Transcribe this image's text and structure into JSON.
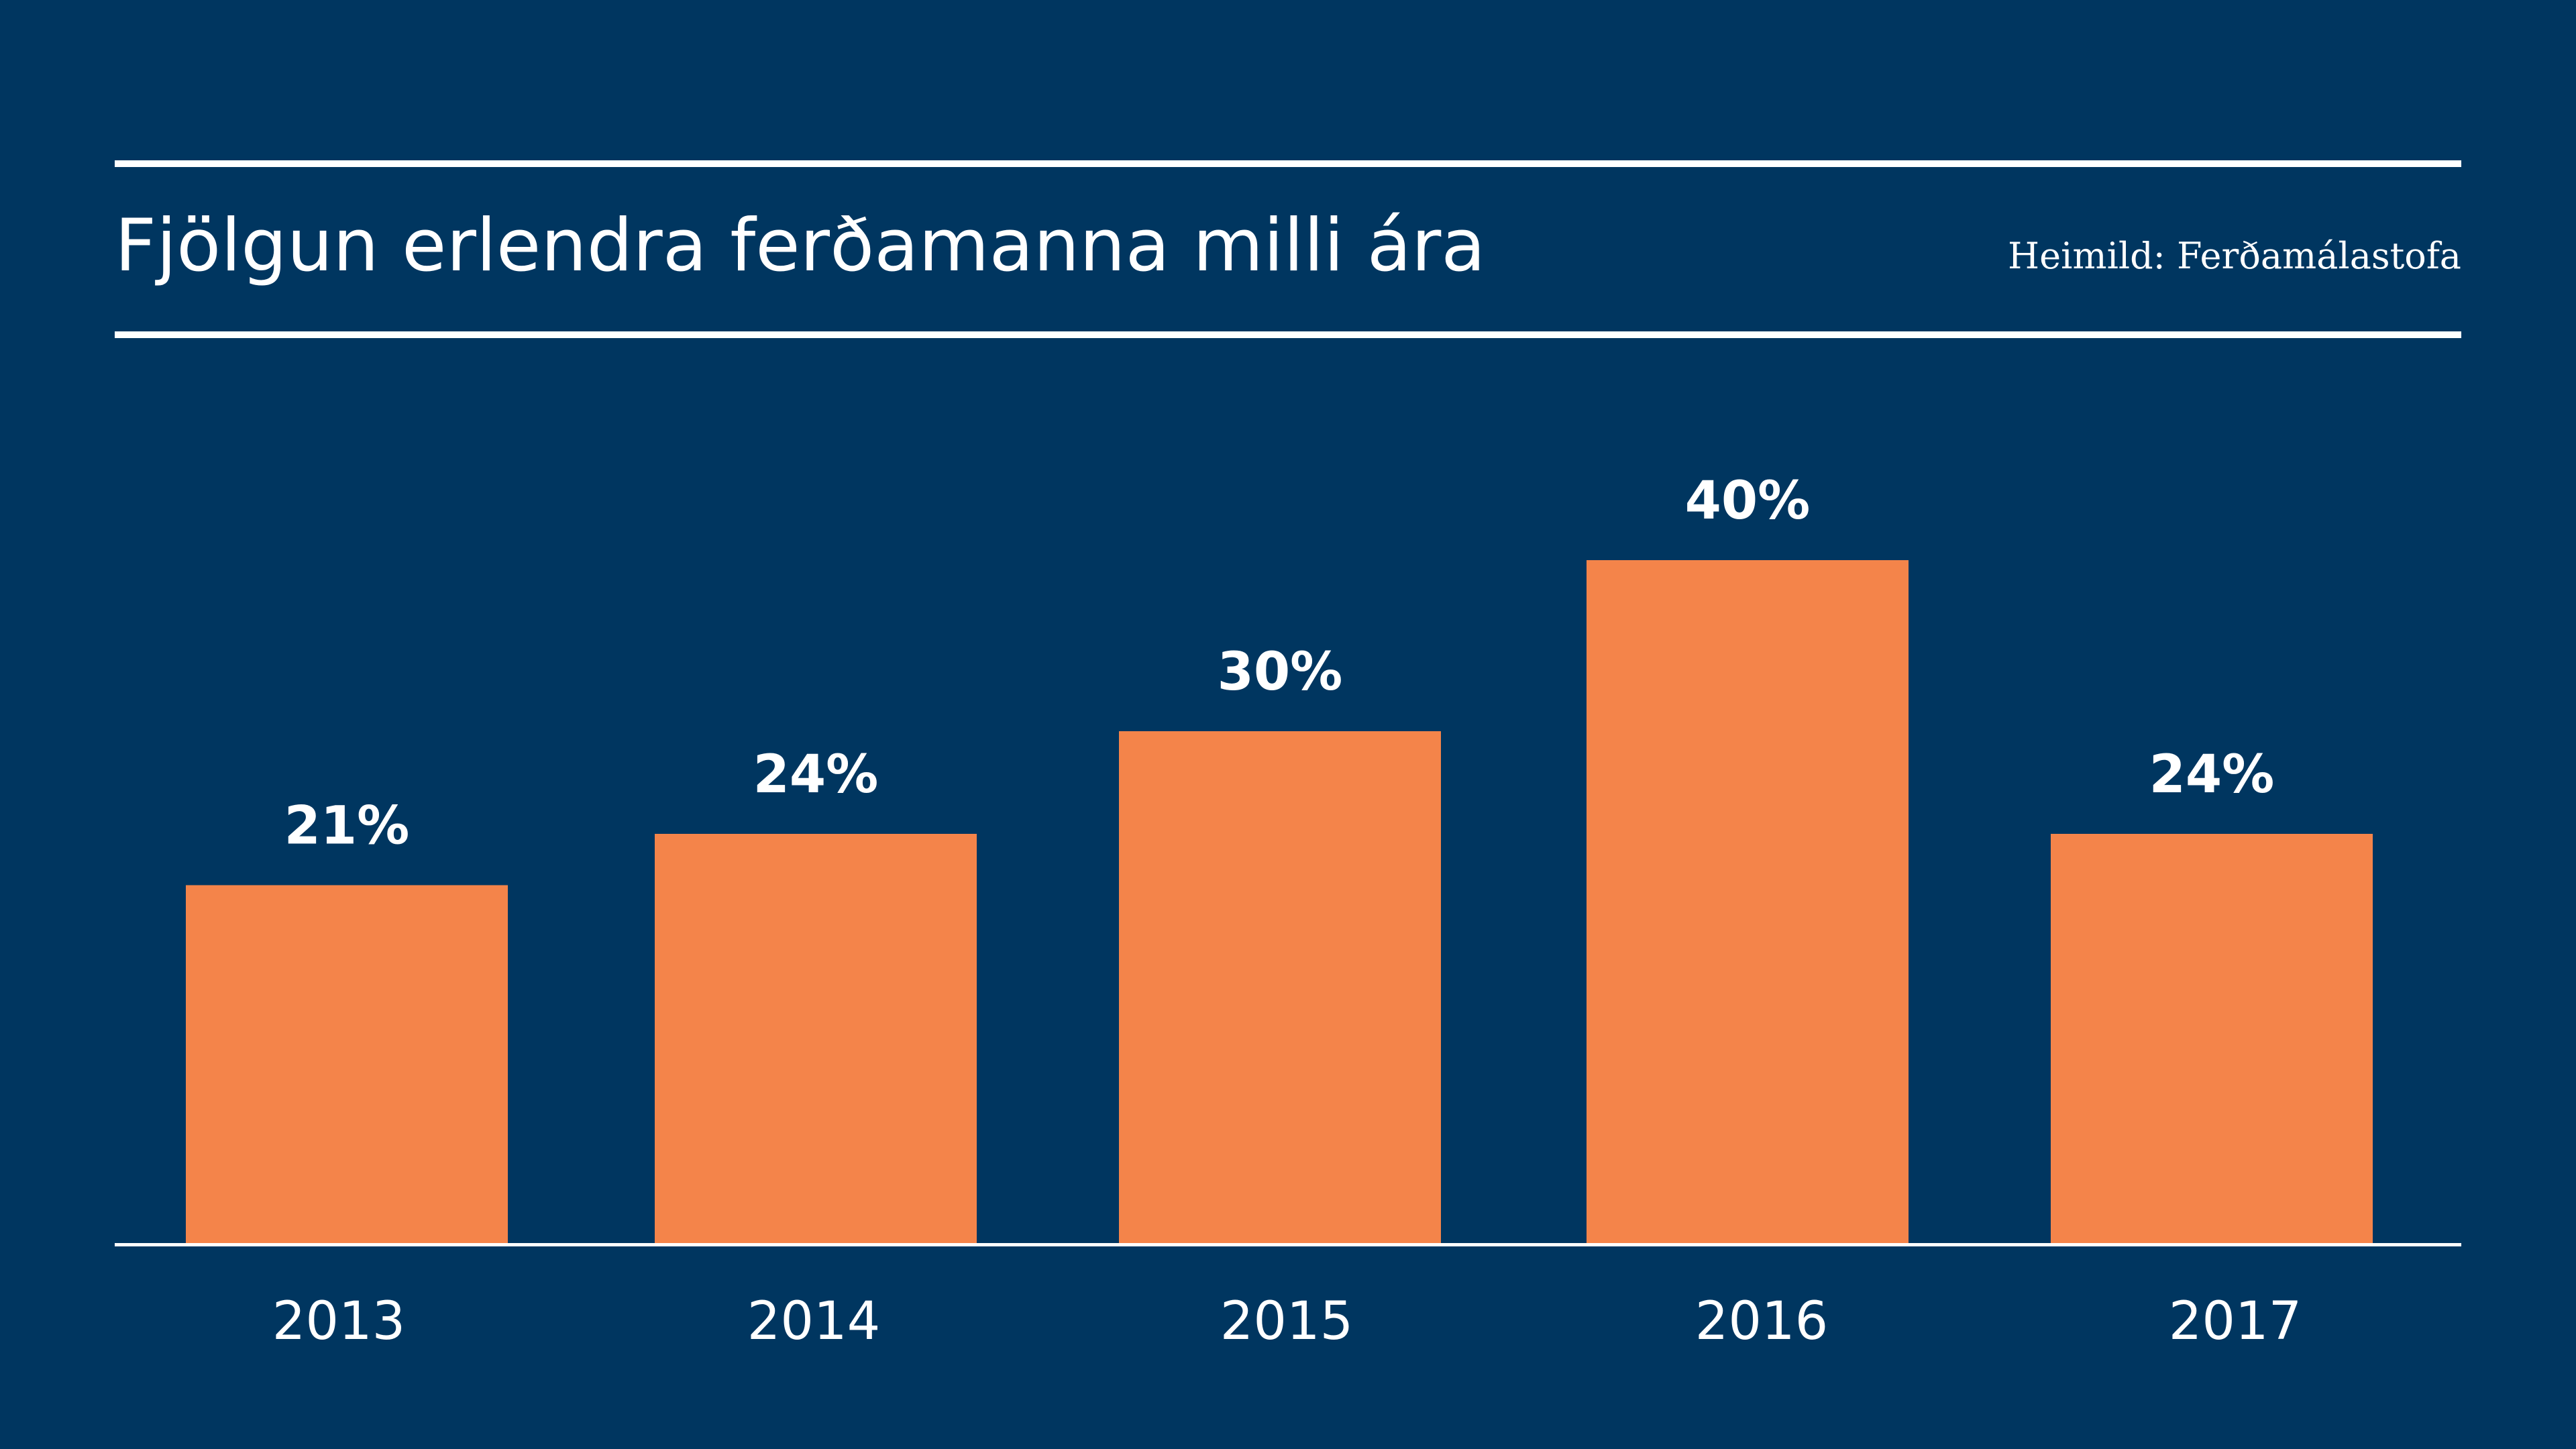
{
  "chart_data": {
    "type": "bar",
    "title": "Fjölgun erlendra ferðamanna milli ára",
    "source": "Heimild: Ferðamálastofa",
    "categories": [
      "2013",
      "2014",
      "2015",
      "2016",
      "2017"
    ],
    "values": [
      21,
      24,
      30,
      40,
      24
    ],
    "value_labels": [
      "21%",
      "24%",
      "30%",
      "40%",
      "24%"
    ],
    "xlabel": "",
    "ylabel": "",
    "ylim": [
      0,
      40
    ],
    "grid": false,
    "legend": "none"
  },
  "colors": {
    "background": "#003660",
    "bar": "#F4844A",
    "text": "#FFFFFF",
    "rule": "#FFFFFF"
  }
}
